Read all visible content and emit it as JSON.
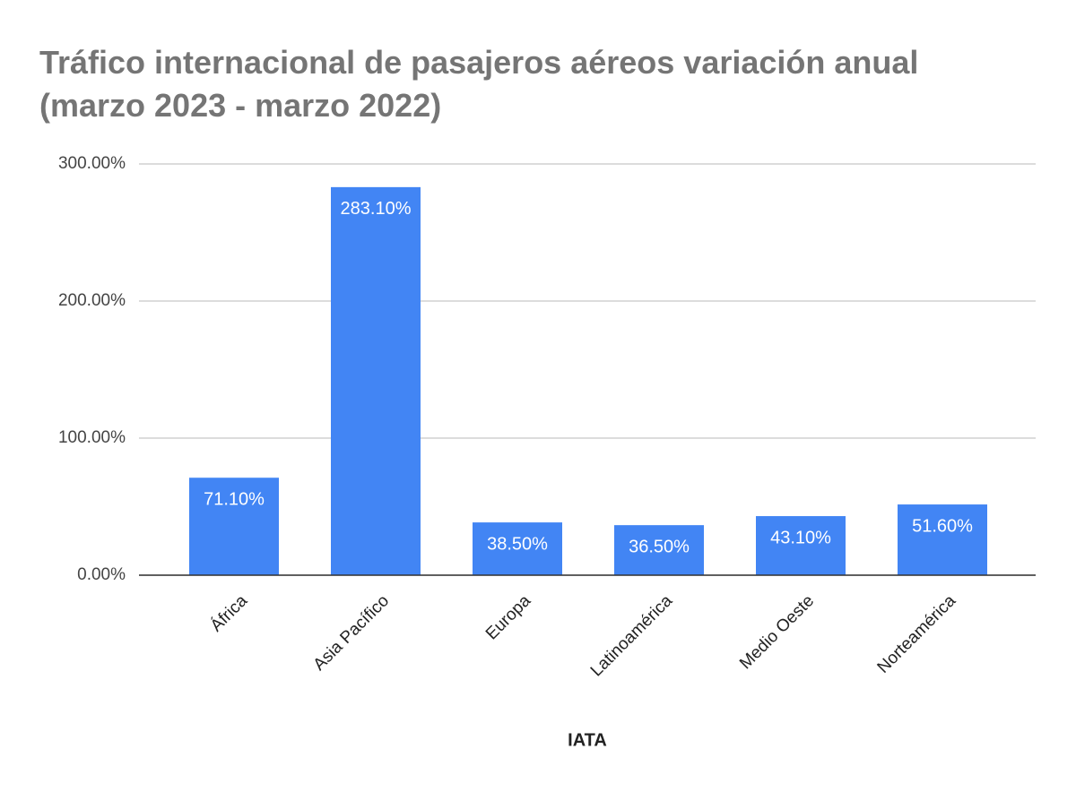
{
  "chart_data": {
    "type": "bar",
    "title": [
      "Tráfico internacional de pasajeros aéreos variación anual",
      "(marzo 2023 - marzo 2022)"
    ],
    "x_label": "IATA",
    "categories": [
      "África",
      "Asia Pacífico",
      "Europa",
      "Latinoamérica",
      "Medio Oeste",
      "Norteamérica"
    ],
    "values": [
      71.1,
      283.1,
      38.5,
      36.5,
      43.1,
      51.6
    ],
    "value_labels": [
      "71.10%",
      "283.10%",
      "38.50%",
      "36.50%",
      "43.10%",
      "51.60%"
    ],
    "color": "#4285f4",
    "ylim": [
      0,
      300
    ],
    "yticks": [
      {
        "value": 0,
        "label": "0.00%"
      },
      {
        "value": 100,
        "label": "100.00%"
      },
      {
        "value": 200,
        "label": "200.00%"
      },
      {
        "value": 300,
        "label": "300.00%"
      }
    ],
    "grid": true
  }
}
